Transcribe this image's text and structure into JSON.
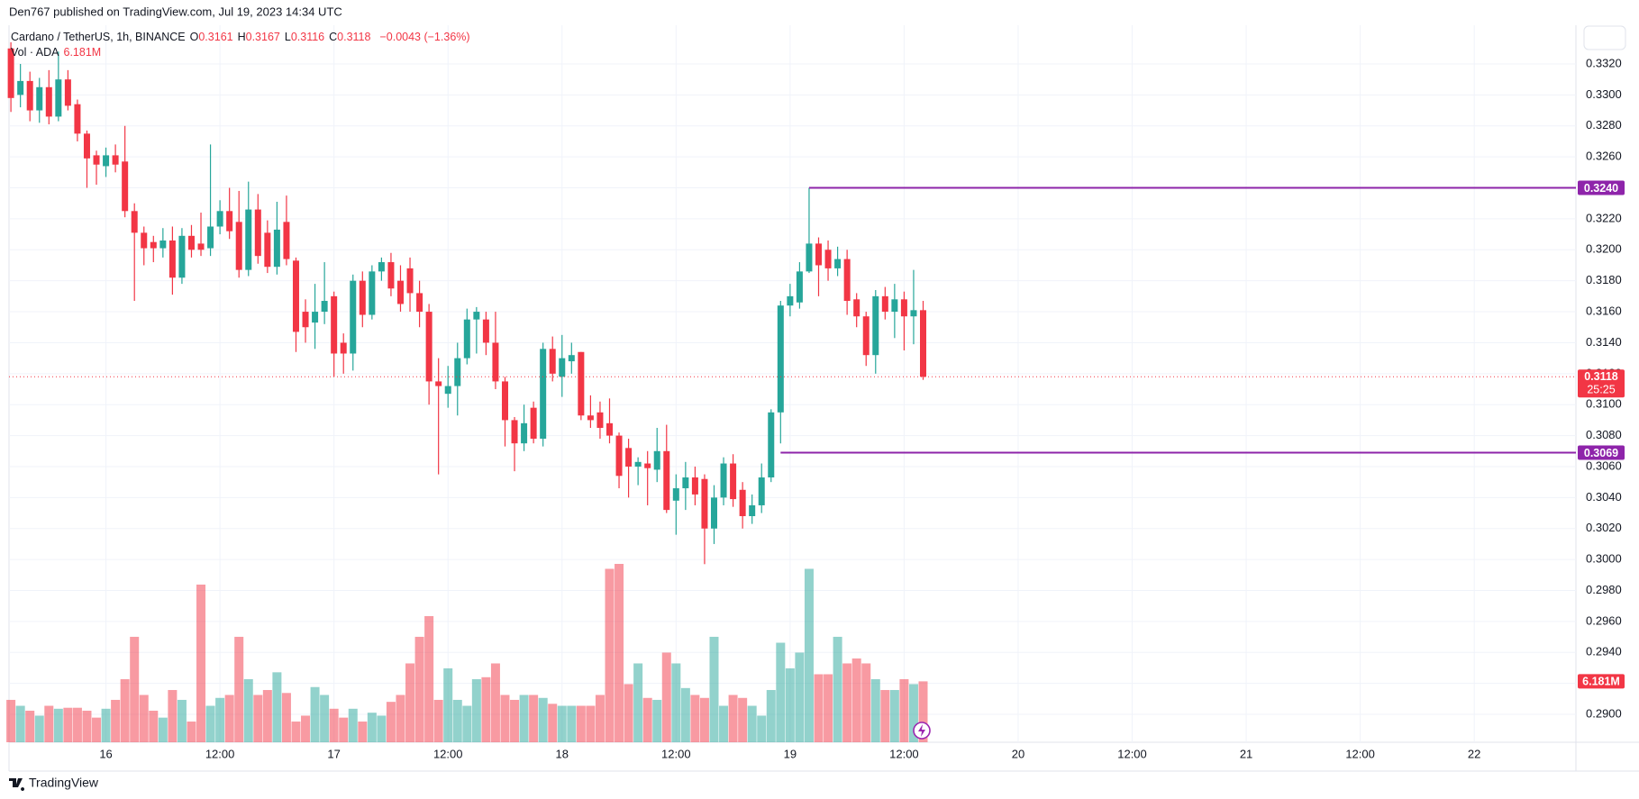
{
  "header": {
    "published": "Den767 published on TradingView.com, Jul 19, 2023 14:34 UTC",
    "footer": "TradingView"
  },
  "chart_data": {
    "type": "candlestick",
    "title": "Cardano / TetherUS, 1h, BINANCE",
    "ohlc_legend": [
      {
        "key": "O",
        "value": 0.3161
      },
      {
        "key": "H",
        "value": 0.3167
      },
      {
        "key": "L",
        "value": 0.3116
      },
      {
        "key": "C",
        "value": 0.3118
      }
    ],
    "change": "−0.0043 (−1.36%)",
    "volume_title": "Vol · ADA",
    "up_color": "#26a69a",
    "down_color": "#f23645",
    "open": [
      0.333,
      0.33,
      0.3309,
      0.329,
      0.3305,
      0.3286,
      0.331,
      0.3294,
      0.3275,
      0.3261,
      0.3254,
      0.3261,
      0.3257,
      0.3225,
      0.3211,
      0.3205,
      0.3201,
      0.3206,
      0.3182,
      0.3209,
      0.3204,
      0.3201,
      0.3215,
      0.3225,
      0.3218,
      0.3187,
      0.3226,
      0.3211,
      0.3189,
      0.3218,
      0.3193,
      0.316,
      0.3153,
      0.316,
      0.317,
      0.314,
      0.3133,
      0.318,
      0.3158,
      0.3186,
      0.3192,
      0.318,
      0.3188,
      0.3172,
      0.316,
      0.3115,
      0.3107,
      0.3112,
      0.313,
      0.3155,
      0.3155,
      0.314,
      0.3115,
      0.309,
      0.3075,
      0.3098,
      0.3078,
      0.3136,
      0.3118,
      0.3128,
      0.3134,
      0.3093,
      0.3095,
      0.3088,
      0.308,
      0.3072,
      0.306,
      0.3062,
      0.3058,
      0.307,
      0.3038,
      0.3046,
      0.3053,
      0.3052,
      0.302,
      0.304,
      0.3062,
      0.3045,
      0.3028,
      0.3035,
      0.3053,
      0.3095,
      0.3164,
      0.3166,
      0.3186,
      0.3204,
      0.32,
      0.3188,
      0.3194,
      0.3168,
      0.3157,
      0.3132,
      0.317,
      0.316,
      0.3168,
      0.3157,
      0.3161
    ],
    "high": [
      0.3334,
      0.332,
      0.3315,
      0.3311,
      0.3316,
      0.3328,
      0.3316,
      0.3297,
      0.3277,
      0.3264,
      0.3266,
      0.3268,
      0.328,
      0.323,
      0.3215,
      0.3209,
      0.3214,
      0.3215,
      0.3214,
      0.3216,
      0.3224,
      0.3268,
      0.3232,
      0.324,
      0.3238,
      0.3244,
      0.3236,
      0.3219,
      0.3231,
      0.3235,
      0.3195,
      0.3168,
      0.3178,
      0.3192,
      0.3173,
      0.3146,
      0.3184,
      0.3186,
      0.319,
      0.3195,
      0.3198,
      0.319,
      0.3195,
      0.318,
      0.3165,
      0.313,
      0.3125,
      0.314,
      0.3162,
      0.3163,
      0.316,
      0.316,
      0.3118,
      0.3092,
      0.31,
      0.3102,
      0.314,
      0.3144,
      0.3145,
      0.314,
      0.3134,
      0.3106,
      0.3102,
      0.3104,
      0.3082,
      0.3078,
      0.3066,
      0.307,
      0.3085,
      0.3087,
      0.3055,
      0.3063,
      0.306,
      0.3055,
      0.3048,
      0.3066,
      0.3068,
      0.305,
      0.3042,
      0.3062,
      0.3097,
      0.3167,
      0.3178,
      0.3192,
      0.324,
      0.3208,
      0.3206,
      0.3202,
      0.32,
      0.3172,
      0.316,
      0.3174,
      0.3176,
      0.3178,
      0.3173,
      0.3187,
      0.3167
    ],
    "low": [
      0.3289,
      0.3292,
      0.3283,
      0.3282,
      0.3281,
      0.3283,
      0.329,
      0.327,
      0.324,
      0.3242,
      0.3247,
      0.325,
      0.3221,
      0.3167,
      0.319,
      0.3192,
      0.3195,
      0.3171,
      0.3178,
      0.3195,
      0.3196,
      0.3196,
      0.321,
      0.3207,
      0.3182,
      0.3183,
      0.3191,
      0.3185,
      0.3184,
      0.319,
      0.3134,
      0.314,
      0.3136,
      0.3152,
      0.3118,
      0.312,
      0.3122,
      0.315,
      0.3155,
      0.318,
      0.317,
      0.316,
      0.316,
      0.315,
      0.31,
      0.3055,
      0.3098,
      0.3093,
      0.3126,
      0.3133,
      0.3132,
      0.311,
      0.3073,
      0.3057,
      0.307,
      0.3075,
      0.3073,
      0.3115,
      0.3105,
      0.312,
      0.309,
      0.3085,
      0.3078,
      0.3075,
      0.3046,
      0.304,
      0.3048,
      0.3035,
      0.305,
      0.303,
      0.3016,
      0.3032,
      0.3035,
      0.2997,
      0.301,
      0.3035,
      0.3034,
      0.302,
      0.3023,
      0.303,
      0.305,
      0.3075,
      0.3157,
      0.3162,
      0.3185,
      0.317,
      0.318,
      0.3183,
      0.3158,
      0.315,
      0.3125,
      0.312,
      0.3155,
      0.3143,
      0.3135,
      0.3139,
      0.3116
    ],
    "close": [
      0.3298,
      0.3309,
      0.329,
      0.3305,
      0.3286,
      0.331,
      0.3293,
      0.3275,
      0.3259,
      0.3255,
      0.3261,
      0.3255,
      0.3225,
      0.3211,
      0.3201,
      0.3201,
      0.3206,
      0.3182,
      0.3209,
      0.32,
      0.32,
      0.3215,
      0.3225,
      0.3212,
      0.3187,
      0.3226,
      0.3196,
      0.3189,
      0.3213,
      0.3194,
      0.3147,
      0.315,
      0.316,
      0.3167,
      0.3133,
      0.3133,
      0.318,
      0.3158,
      0.3186,
      0.3192,
      0.3175,
      0.3165,
      0.3172,
      0.316,
      0.3115,
      0.3112,
      0.3112,
      0.313,
      0.3155,
      0.316,
      0.314,
      0.3115,
      0.309,
      0.3075,
      0.3088,
      0.3078,
      0.3136,
      0.312,
      0.313,
      0.3132,
      0.3093,
      0.309,
      0.3085,
      0.308,
      0.3054,
      0.306,
      0.3063,
      0.3059,
      0.307,
      0.3032,
      0.3046,
      0.3053,
      0.3042,
      0.302,
      0.304,
      0.3062,
      0.3039,
      0.3028,
      0.3035,
      0.3053,
      0.3095,
      0.3164,
      0.317,
      0.3186,
      0.3204,
      0.319,
      0.3188,
      0.3194,
      0.3167,
      0.3157,
      0.3132,
      0.317,
      0.316,
      0.3168,
      0.3157,
      0.3161,
      0.3118
    ],
    "volume": [
      4.3,
      3.7,
      3.2,
      2.7,
      3.7,
      3.4,
      3.5,
      3.5,
      3.2,
      2.5,
      3.4,
      4.3,
      6.4,
      10.7,
      4.8,
      3.2,
      2.5,
      5.3,
      4.3,
      2.1,
      16.0,
      3.7,
      4.5,
      4.8,
      10.7,
      6.4,
      4.8,
      5.3,
      7.1,
      5.0,
      2.1,
      2.7,
      5.6,
      4.8,
      3.4,
      2.5,
      3.4,
      2.1,
      3.0,
      2.7,
      4.1,
      4.8,
      8.0,
      10.7,
      12.8,
      4.3,
      7.5,
      4.3,
      3.7,
      6.4,
      6.6,
      8.0,
      4.8,
      4.3,
      4.8,
      4.8,
      4.5,
      3.9,
      3.7,
      3.7,
      3.7,
      3.7,
      4.8,
      17.6,
      18.1,
      5.9,
      8.0,
      4.5,
      4.3,
      9.1,
      8.0,
      5.5,
      4.8,
      4.5,
      10.7,
      3.7,
      4.8,
      4.5,
      3.7,
      2.7,
      5.3,
      10.1,
      7.5,
      9.1,
      17.6,
      6.9,
      6.9,
      10.7,
      8.0,
      8.5,
      8.0,
      6.4,
      5.3,
      5.3,
      6.4,
      5.9,
      6.181
    ],
    "xlim": [
      -0.2,
      164.7
    ],
    "xticks": [
      {
        "value": 10,
        "label": "16"
      },
      {
        "value": 22,
        "label": "12:00"
      },
      {
        "value": 34,
        "label": "17"
      },
      {
        "value": 46,
        "label": "12:00"
      },
      {
        "value": 58,
        "label": "18"
      },
      {
        "value": 70,
        "label": "12:00"
      },
      {
        "value": 82,
        "label": "19"
      },
      {
        "value": 94,
        "label": "12:00"
      },
      {
        "value": 106,
        "label": "20"
      },
      {
        "value": 118,
        "label": "12:00"
      },
      {
        "value": 130,
        "label": "21"
      },
      {
        "value": 142,
        "label": "12:00"
      },
      {
        "value": 154,
        "label": "22"
      }
    ],
    "ylim": [
      0.2882,
      0.3345
    ],
    "yticks": [
      {
        "value": 0.29,
        "label": "0.2900"
      },
      {
        "value": 0.292,
        "label": "0.2920"
      },
      {
        "value": 0.294,
        "label": "0.2940"
      },
      {
        "value": 0.296,
        "label": "0.2960"
      },
      {
        "value": 0.298,
        "label": "0.2980"
      },
      {
        "value": 0.3,
        "label": "0.3000"
      },
      {
        "value": 0.302,
        "label": "0.3020"
      },
      {
        "value": 0.304,
        "label": "0.3040"
      },
      {
        "value": 0.306,
        "label": "0.3060"
      },
      {
        "value": 0.308,
        "label": "0.3080"
      },
      {
        "value": 0.31,
        "label": "0.3100"
      },
      {
        "value": 0.312,
        "label": "0.3120"
      },
      {
        "value": 0.314,
        "label": "0.3140"
      },
      {
        "value": 0.316,
        "label": "0.3160"
      },
      {
        "value": 0.318,
        "label": "0.3180"
      },
      {
        "value": 0.32,
        "label": "0.3200"
      },
      {
        "value": 0.322,
        "label": "0.3220"
      },
      {
        "value": 0.324,
        "label": "0.3240"
      },
      {
        "value": 0.326,
        "label": "0.3260"
      },
      {
        "value": 0.328,
        "label": "0.3280"
      },
      {
        "value": 0.33,
        "label": "0.3300"
      },
      {
        "value": 0.332,
        "label": "0.3320"
      }
    ],
    "levels": [
      {
        "value": 0.324,
        "label": "0.3240",
        "from_x": 84,
        "color": "#8e24aa"
      },
      {
        "value": 0.3069,
        "label": "0.3069",
        "from_x": 81,
        "color": "#8e24aa"
      }
    ],
    "last_price": {
      "value": 0.3118,
      "label": "0.3118",
      "countdown": "25:25"
    },
    "last_volume": {
      "value": 6.181,
      "label": "6.181M"
    },
    "grid": true
  }
}
